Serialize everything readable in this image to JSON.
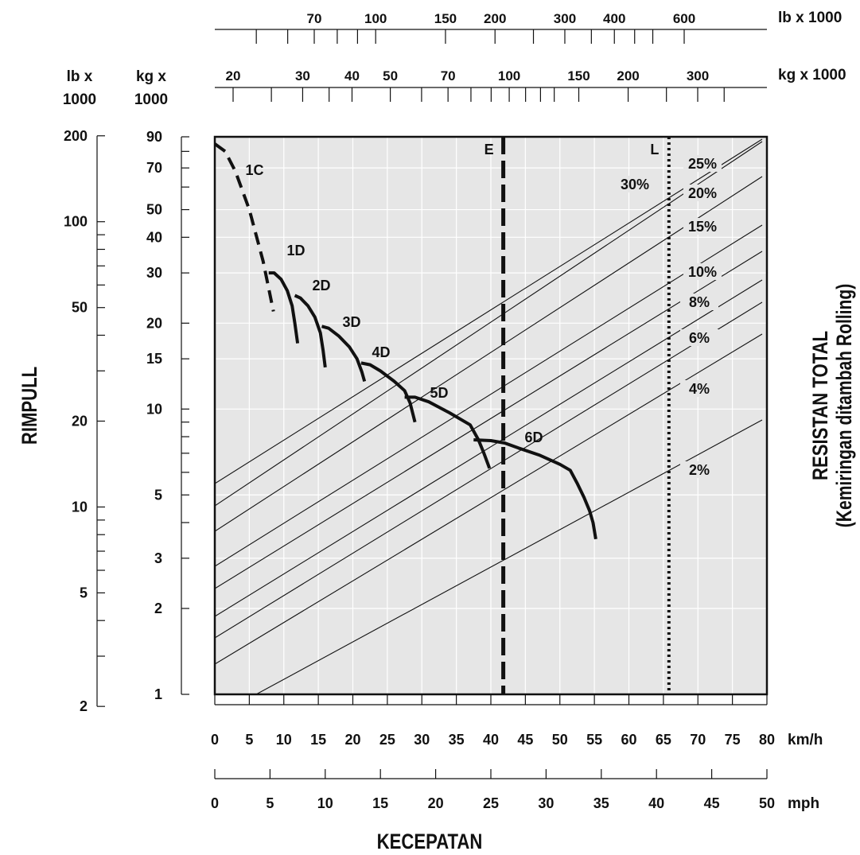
{
  "chart_data": {
    "type": "line",
    "title": "",
    "xlabel": "KECEPATAN",
    "ylabel_left": "RIMPULL",
    "ylabel_right": [
      "RESISTAN TOTAL",
      "(Kemiringan ditambah Rolling)"
    ],
    "x_axes": {
      "kmh": {
        "unit": "km/h",
        "range": [
          0,
          80
        ],
        "ticks": [
          "0",
          "5",
          "10",
          "15",
          "20",
          "25",
          "30",
          "35",
          "40",
          "45",
          "50",
          "55",
          "60",
          "65",
          "70",
          "75",
          "80"
        ]
      },
      "mph": {
        "unit": "mph",
        "range": [
          0,
          50
        ],
        "ticks": [
          "0",
          "5",
          "10",
          "15",
          "20",
          "25",
          "30",
          "35",
          "40",
          "45",
          "50"
        ]
      }
    },
    "y_axes": {
      "kg": {
        "header": [
          "kg x",
          "1000"
        ],
        "scale": "log",
        "range": [
          1,
          90
        ],
        "ticks": [
          "1",
          "2",
          "3",
          "5",
          "10",
          "15",
          "20",
          "30",
          "40",
          "50",
          "70",
          "90"
        ]
      },
      "lb": {
        "header": [
          "lb x",
          "1000"
        ],
        "scale": "log",
        "range": [
          2,
          200
        ],
        "ticks": [
          "2",
          "5",
          "10",
          "20",
          "50",
          "100",
          "200"
        ]
      }
    },
    "weight_axes": {
      "lb": {
        "unit": "lb x 1000",
        "ticks": [
          "70",
          "100",
          "150",
          "200",
          "300",
          "400",
          "600"
        ]
      },
      "kg": {
        "unit": "kg x 1000",
        "ticks": [
          "20",
          "30",
          "40",
          "50",
          "70",
          "100",
          "150",
          "200",
          "300"
        ]
      }
    },
    "grade_lines": [
      "30%",
      "25%",
      "20%",
      "15%",
      "10%",
      "8%",
      "6%",
      "4%",
      "2%"
    ],
    "gear_curves": [
      {
        "name": "1C",
        "style": "dashed",
        "points": [
          [
            0,
            85
          ],
          [
            1.5,
            80
          ],
          [
            3,
            68
          ],
          [
            5,
            50
          ],
          [
            7,
            33
          ],
          [
            8.5,
            22
          ]
        ]
      },
      {
        "name": "1D",
        "points": [
          [
            7.8,
            30
          ],
          [
            8.6,
            30
          ],
          [
            9.6,
            28.5
          ],
          [
            10.5,
            26
          ],
          [
            11.2,
            23
          ],
          [
            11.6,
            20
          ],
          [
            12,
            17
          ]
        ]
      },
      {
        "name": "2D",
        "points": [
          [
            11.6,
            25
          ],
          [
            12.4,
            24.5
          ],
          [
            13.5,
            23
          ],
          [
            14.5,
            21
          ],
          [
            15.3,
            18.5
          ],
          [
            15.7,
            16
          ],
          [
            16,
            14
          ]
        ]
      },
      {
        "name": "3D",
        "points": [
          [
            15.5,
            19.5
          ],
          [
            16.5,
            19.2
          ],
          [
            18,
            18
          ],
          [
            19.5,
            16.5
          ],
          [
            20.6,
            15
          ],
          [
            21.3,
            13.5
          ],
          [
            21.7,
            12.5
          ]
        ]
      },
      {
        "name": "4D",
        "points": [
          [
            21.2,
            14.5
          ],
          [
            22.5,
            14.3
          ],
          [
            24,
            13.6
          ],
          [
            26,
            12.5
          ],
          [
            27.5,
            11.6
          ],
          [
            28.3,
            10.5
          ],
          [
            29,
            9
          ]
        ]
      },
      {
        "name": "5D",
        "points": [
          [
            27.5,
            11
          ],
          [
            29,
            11
          ],
          [
            31,
            10.6
          ],
          [
            34,
            9.7
          ],
          [
            37,
            8.8
          ],
          [
            38.2,
            7.8
          ],
          [
            39,
            7
          ],
          [
            39.8,
            6.2
          ]
        ]
      },
      {
        "name": "6D",
        "points": [
          [
            37.5,
            7.8
          ],
          [
            40,
            7.75
          ],
          [
            42,
            7.6
          ],
          [
            44,
            7.3
          ],
          [
            47,
            6.9
          ],
          [
            50,
            6.4
          ],
          [
            51.5,
            6.1
          ],
          [
            52.5,
            5.5
          ],
          [
            53.5,
            4.9
          ],
          [
            54.3,
            4.4
          ],
          [
            54.8,
            4
          ],
          [
            55.2,
            3.5
          ]
        ]
      }
    ],
    "reference_lines": [
      {
        "name": "E",
        "style": "dashed",
        "x": 41.8
      },
      {
        "name": "L",
        "style": "dotted",
        "x": 65.8
      }
    ],
    "grid": true
  }
}
